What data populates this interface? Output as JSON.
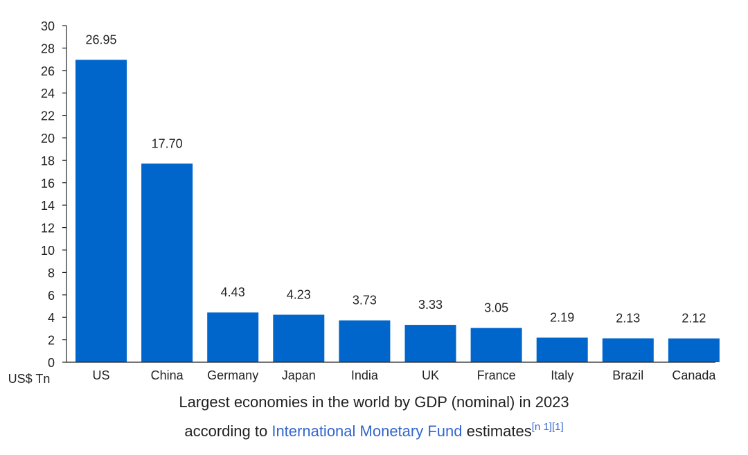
{
  "chart_data": {
    "type": "bar",
    "categories": [
      "US",
      "China",
      "Germany",
      "Japan",
      "India",
      "UK",
      "France",
      "Italy",
      "Brazil",
      "Canada"
    ],
    "values": [
      26.95,
      17.7,
      4.43,
      4.23,
      3.73,
      3.33,
      3.05,
      2.19,
      2.13,
      2.12
    ],
    "value_labels": [
      "26.95",
      "17.70",
      "4.43",
      "4.23",
      "3.73",
      "3.33",
      "3.05",
      "2.19",
      "2.13",
      "2.12"
    ],
    "ylim": [
      0,
      30
    ],
    "yticks": [
      0,
      2,
      4,
      6,
      8,
      10,
      12,
      14,
      16,
      18,
      20,
      22,
      24,
      26,
      28,
      30
    ],
    "ylabel": "US$ Tn",
    "xlabel": "",
    "grid": false,
    "bar_color": "#0066cc"
  },
  "caption": {
    "line1": "Largest economies in the world by GDP (nominal) in 2023",
    "line2_prefix": "according to ",
    "link_text": "International Monetary Fund",
    "line2_suffix": " estimates",
    "ref1": "[n 1]",
    "ref2": "[1]"
  },
  "colors": {
    "bar": "#0066cc",
    "link": "#3366cc",
    "axis": "#222222"
  }
}
